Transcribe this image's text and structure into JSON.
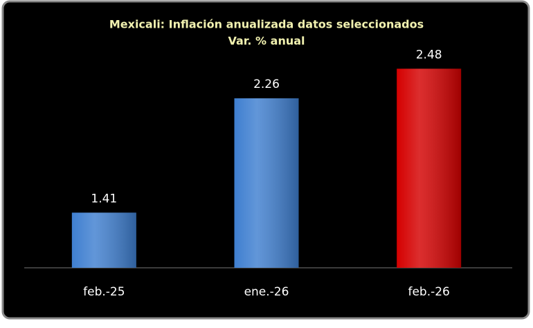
{
  "chart_data": {
    "type": "bar",
    "title": "Mexicali: Inflación anualizada  datos seleccionados",
    "subtitle": "Var. % anual",
    "categories": [
      "feb.-25",
      "ene.-26",
      "feb.-26"
    ],
    "values": [
      1.41,
      2.26,
      2.48
    ],
    "colors": [
      "#3f7fd0",
      "#3f7fd0",
      "#d40000"
    ],
    "ylim": [
      1,
      2.6
    ]
  }
}
